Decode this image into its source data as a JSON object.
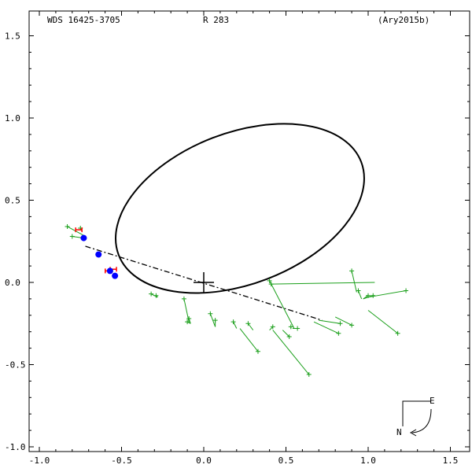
{
  "chart_data": {
    "type": "scatter",
    "header": {
      "left": "WDS 16425-3705",
      "center": "R   283",
      "right": "(Ary2015b)"
    },
    "xlim": [
      -1.0,
      1.5
    ],
    "ylim": [
      -1.0,
      1.5
    ],
    "xticks": [
      "-1.0",
      "-0.5",
      "0.0",
      "0.5",
      "1.0",
      "1.5"
    ],
    "xtick_values": [
      -1.0,
      -0.5,
      0.0,
      0.5,
      1.0,
      1.5
    ],
    "yticks": [
      "1.5",
      "1.0",
      "0.5",
      "0.0",
      "-0.5",
      "-1.0"
    ],
    "ytick_values": [
      1.5,
      1.0,
      0.5,
      0.0,
      -0.5,
      -1.0
    ],
    "orbit_ellipse": {
      "center": [
        0.22,
        0.45
      ],
      "semi_axes": [
        0.79,
        0.46
      ],
      "rotation_deg": 21,
      "color": "#000000"
    },
    "primary_marker": [
      0.0,
      0.0
    ],
    "line_of_nodes": {
      "from": [
        -0.72,
        0.22
      ],
      "to": [
        0.72,
        -0.23
      ],
      "style": "dash-dot"
    },
    "observations_green": [
      {
        "obs": [
          -0.83,
          0.34
        ],
        "pred": [
          -0.72,
          0.28
        ]
      },
      {
        "obs": [
          -0.8,
          0.28
        ],
        "pred": [
          -0.73,
          0.27
        ]
      },
      {
        "obs": [
          -0.75,
          0.33
        ],
        "pred": [
          -0.74,
          0.31
        ]
      },
      {
        "obs": [
          -0.32,
          -0.07
        ],
        "pred": [
          -0.28,
          -0.09
        ]
      },
      {
        "obs": [
          -0.29,
          -0.08
        ],
        "pred": [
          -0.28,
          -0.09
        ]
      },
      {
        "obs": [
          -0.12,
          -0.1
        ],
        "pred": [
          -0.09,
          -0.24
        ]
      },
      {
        "obs": [
          -0.1,
          -0.24
        ],
        "pred": [
          -0.08,
          -0.25
        ]
      },
      {
        "obs": [
          -0.09,
          -0.22
        ],
        "pred": [
          -0.08,
          -0.25
        ]
      },
      {
        "obs": [
          0.04,
          -0.19
        ],
        "pred": [
          0.07,
          -0.27
        ]
      },
      {
        "obs": [
          0.07,
          -0.23
        ],
        "pred": [
          0.07,
          -0.27
        ]
      },
      {
        "obs": [
          0.18,
          -0.24
        ],
        "pred": [
          0.2,
          -0.28
        ]
      },
      {
        "obs": [
          0.33,
          -0.42
        ],
        "pred": [
          0.22,
          -0.28
        ]
      },
      {
        "obs": [
          0.27,
          -0.25
        ],
        "pred": [
          0.3,
          -0.29
        ]
      },
      {
        "obs": [
          0.42,
          -0.27
        ],
        "pred": [
          0.4,
          -0.29
        ]
      },
      {
        "obs": [
          0.64,
          -0.56
        ],
        "pred": [
          0.42,
          -0.29
        ]
      },
      {
        "obs": [
          0.52,
          -0.33
        ],
        "pred": [
          0.48,
          -0.29
        ]
      },
      {
        "obs": [
          0.53,
          -0.27
        ],
        "pred": [
          0.53,
          -0.28
        ]
      },
      {
        "obs": [
          0.57,
          -0.28
        ],
        "pred": [
          0.54,
          -0.28
        ]
      },
      {
        "obs": [
          0.4,
          0.01
        ],
        "pred": [
          0.55,
          -0.28
        ]
      },
      {
        "obs": [
          0.82,
          -0.31
        ],
        "pred": [
          0.67,
          -0.24
        ]
      },
      {
        "obs": [
          0.83,
          -0.25
        ],
        "pred": [
          0.7,
          -0.23
        ]
      },
      {
        "obs": [
          0.9,
          -0.26
        ],
        "pred": [
          0.8,
          -0.21
        ]
      },
      {
        "obs": [
          0.9,
          0.07
        ],
        "pred": [
          0.93,
          -0.06
        ]
      },
      {
        "obs": [
          0.94,
          -0.05
        ],
        "pred": [
          0.96,
          -0.1
        ]
      },
      {
        "obs": [
          1.0,
          -0.08
        ],
        "pred": [
          0.97,
          -0.1
        ]
      },
      {
        "obs": [
          1.03,
          -0.08
        ],
        "pred": [
          0.97,
          -0.1
        ]
      },
      {
        "obs": [
          1.18,
          -0.31
        ],
        "pred": [
          1.0,
          -0.17
        ]
      },
      {
        "obs": [
          1.23,
          -0.05
        ],
        "pred": [
          1.0,
          -0.09
        ]
      },
      {
        "obs": [
          0.41,
          -0.01
        ],
        "pred": [
          1.04,
          0.0
        ]
      }
    ],
    "observations_blue": [
      [
        -0.73,
        0.27
      ],
      [
        -0.64,
        0.17
      ],
      [
        -0.57,
        0.07
      ],
      [
        -0.54,
        0.04
      ]
    ],
    "observations_red": [
      [
        -0.76,
        0.32
      ],
      [
        -0.58,
        0.07
      ],
      [
        -0.55,
        0.08
      ]
    ],
    "orientation": {
      "east_label": "E",
      "north_label": "N"
    },
    "colors": {
      "green": "#1a9f1a",
      "blue": "#0000ff",
      "red": "#ff0000",
      "axis": "#000000"
    }
  }
}
